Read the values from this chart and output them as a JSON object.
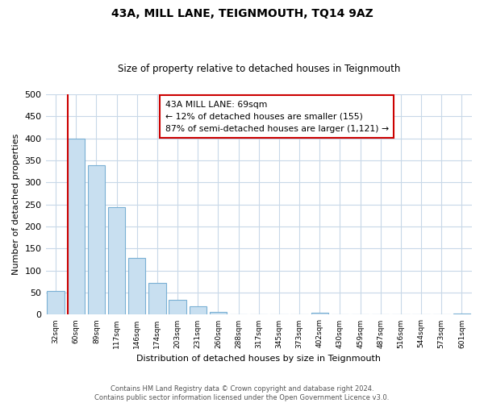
{
  "title": "43A, MILL LANE, TEIGNMOUTH, TQ14 9AZ",
  "subtitle": "Size of property relative to detached houses in Teignmouth",
  "xlabel": "Distribution of detached houses by size in Teignmouth",
  "ylabel": "Number of detached properties",
  "bar_labels": [
    "32sqm",
    "60sqm",
    "89sqm",
    "117sqm",
    "146sqm",
    "174sqm",
    "203sqm",
    "231sqm",
    "260sqm",
    "288sqm",
    "317sqm",
    "345sqm",
    "373sqm",
    "402sqm",
    "430sqm",
    "459sqm",
    "487sqm",
    "516sqm",
    "544sqm",
    "573sqm",
    "601sqm"
  ],
  "bar_values": [
    53,
    400,
    338,
    243,
    128,
    72,
    34,
    19,
    6,
    0,
    0,
    0,
    0,
    5,
    0,
    0,
    0,
    0,
    0,
    0,
    3
  ],
  "bar_color": "#c8dff0",
  "bar_edge_color": "#7ab0d4",
  "vline_color": "#cc0000",
  "annotation_title": "43A MILL LANE: 69sqm",
  "annotation_line1": "← 12% of detached houses are smaller (155)",
  "annotation_line2": "87% of semi-detached houses are larger (1,121) →",
  "annotation_box_color": "#ffffff",
  "annotation_box_edge": "#cc0000",
  "ylim": [
    0,
    500
  ],
  "yticks": [
    0,
    50,
    100,
    150,
    200,
    250,
    300,
    350,
    400,
    450,
    500
  ],
  "footer1": "Contains HM Land Registry data © Crown copyright and database right 2024.",
  "footer2": "Contains public sector information licensed under the Open Government Licence v3.0.",
  "bg_color": "#ffffff",
  "grid_color": "#c8d8e8"
}
